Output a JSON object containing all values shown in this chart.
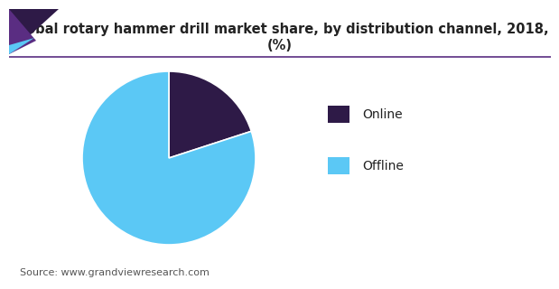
{
  "title": "Global rotary hammer drill market share, by distribution channel, 2018, (%)",
  "slices": [
    20.0,
    80.0
  ],
  "labels": [
    "Online",
    "Offline"
  ],
  "colors": [
    "#2e1a47",
    "#5bc8f5"
  ],
  "startangle": 90,
  "source_text": "Source: www.grandviewresearch.com",
  "title_fontsize": 10.5,
  "legend_fontsize": 10,
  "source_fontsize": 8,
  "background_color": "#ffffff",
  "wedge_edge_color": "#ffffff",
  "accent_color_dark": "#2e1a47",
  "accent_color_mid": "#7b3fa0",
  "accent_color_light": "#5bc8f5",
  "line_color": "#5a2d82",
  "title_color": "#222222"
}
